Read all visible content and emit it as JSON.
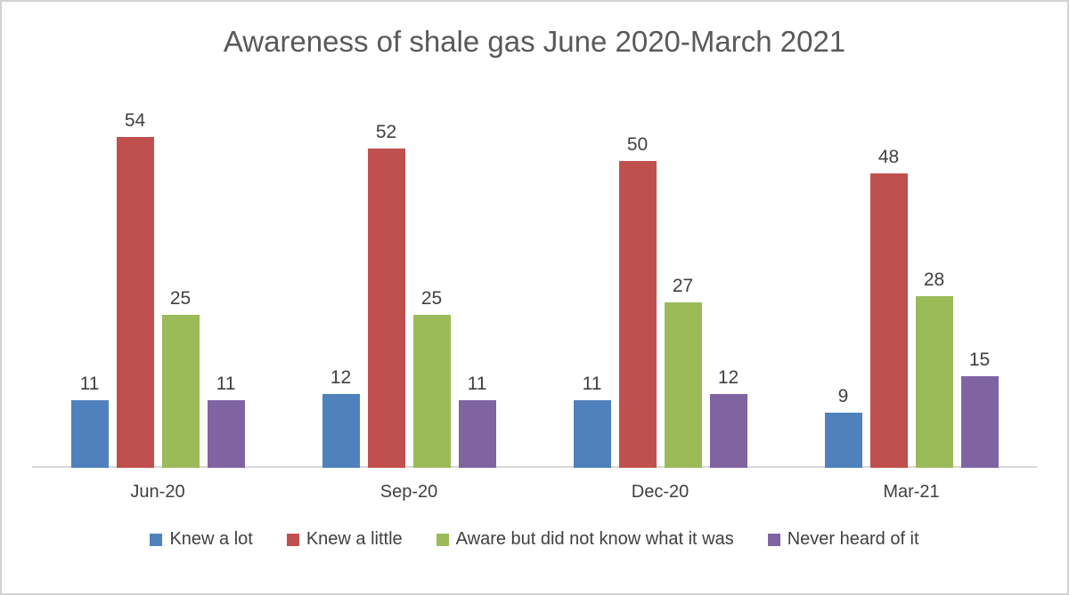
{
  "chart_data": {
    "type": "bar",
    "title": "Awareness of shale gas June 2020-March 2021",
    "categories": [
      "Jun-20",
      "Sep-20",
      "Dec-20",
      "Mar-21"
    ],
    "series": [
      {
        "name": "Knew a lot",
        "color": "#4F81BD",
        "values": [
          11,
          12,
          11,
          9
        ]
      },
      {
        "name": "Knew a little",
        "color": "#C0504D",
        "values": [
          54,
          52,
          50,
          48
        ]
      },
      {
        "name": "Aware but did not know what it was",
        "color": "#9BBB59",
        "values": [
          25,
          25,
          27,
          28
        ]
      },
      {
        "name": "Never heard of it",
        "color": "#8064A2",
        "values": [
          11,
          11,
          12,
          15
        ]
      }
    ],
    "data_labels": true,
    "grid": false,
    "y_axis_visible": false,
    "ylim": [
      0,
      54
    ],
    "legend_position": "bottom",
    "axis_line_color": "#D9D9D9",
    "label_color": "#404040",
    "title_color": "#595959",
    "frame_border_color": "#D2D2D2"
  }
}
